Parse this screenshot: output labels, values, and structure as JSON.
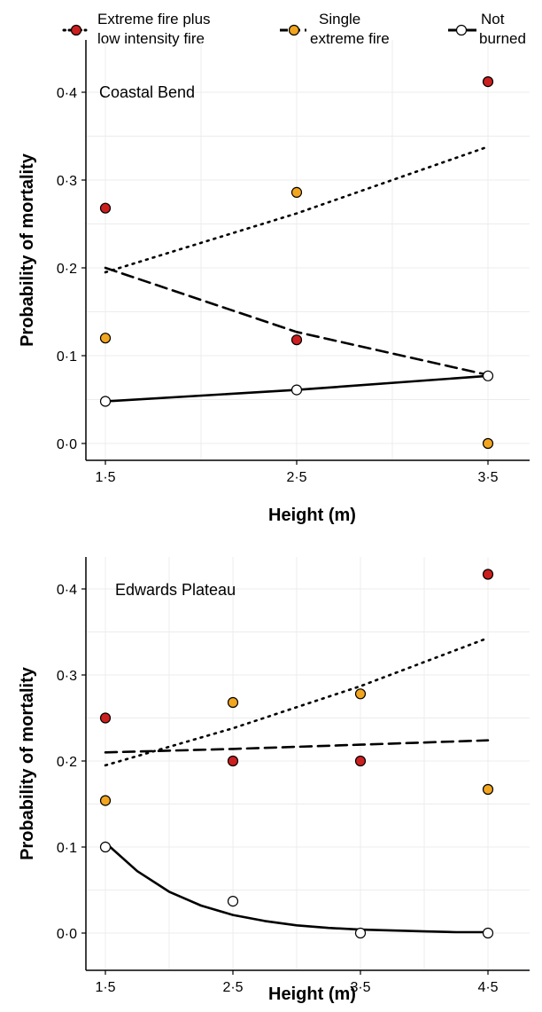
{
  "legend": {
    "items": [
      {
        "label_lines": [
          "Extreme fire plus",
          "low intensity fire"
        ],
        "line": "dotted",
        "fill": "#cc1f1f"
      },
      {
        "label_lines": [
          "Single",
          "extreme fire"
        ],
        "line": "dashed",
        "fill": "#f2a51e"
      },
      {
        "label_lines": [
          "Not",
          "burned"
        ],
        "line": "solid",
        "fill": "#ffffff"
      }
    ]
  },
  "colors": {
    "extreme_plus_low": "#cc1f1f",
    "single_extreme": "#f2a51e",
    "not_burned": "#ffffff",
    "grid": "#ececec"
  },
  "chart_data": [
    {
      "type": "scatter",
      "title": "Coastal Bend",
      "xlabel": "Height (m)",
      "ylabel": "Probability of mortality",
      "xlim": [
        1.5,
        3.5
      ],
      "ylim": [
        0,
        0.4
      ],
      "x_ticks": [
        "1·5",
        "2·5",
        "3·5"
      ],
      "y_ticks": [
        "0·0",
        "0·1",
        "0·2",
        "0·3",
        "0·4"
      ],
      "grid": true,
      "legend_position": "top",
      "series": [
        {
          "name": "Extreme fire plus low intensity fire",
          "x": [
            1.5,
            2.5,
            3.5
          ],
          "y": [
            0.268,
            0.118,
            0.412
          ],
          "fit": {
            "x": [
              1.5,
              2.5,
              3.5
            ],
            "y": [
              0.195,
              0.262,
              0.338
            ]
          },
          "line": "dotted",
          "fill": "#cc1f1f"
        },
        {
          "name": "Single extreme fire",
          "x": [
            1.5,
            2.5,
            3.5
          ],
          "y": [
            0.12,
            0.286,
            0.0
          ],
          "fit": {
            "x": [
              1.5,
              2.5,
              3.5
            ],
            "y": [
              0.2,
              0.127,
              0.078
            ]
          },
          "line": "dashed",
          "fill": "#f2a51e"
        },
        {
          "name": "Not burned",
          "x": [
            1.5,
            2.5,
            3.5
          ],
          "y": [
            0.048,
            0.061,
            0.077
          ],
          "fit": {
            "x": [
              1.5,
              2.5,
              3.5
            ],
            "y": [
              0.048,
              0.061,
              0.077
            ]
          },
          "line": "solid",
          "fill": "#ffffff"
        }
      ]
    },
    {
      "type": "scatter",
      "title": "Edwards Plateau",
      "xlabel": "Height (m)",
      "ylabel": "Probability of mortality",
      "xlim": [
        1.5,
        4.5
      ],
      "ylim": [
        0,
        0.4
      ],
      "x_ticks": [
        "1·5",
        "2·5",
        "3·5",
        "4·5"
      ],
      "y_ticks": [
        "0·0",
        "0·1",
        "0·2",
        "0·3",
        "0·4"
      ],
      "grid": true,
      "series": [
        {
          "name": "Extreme fire plus low intensity fire",
          "x": [
            1.5,
            2.5,
            3.5,
            4.5
          ],
          "y": [
            0.25,
            0.2,
            0.2,
            0.417
          ],
          "fit": {
            "x": [
              1.5,
              2.5,
              3.5,
              4.5
            ],
            "y": [
              0.195,
              0.238,
              0.287,
              0.343
            ]
          },
          "line": "dotted",
          "fill": "#cc1f1f"
        },
        {
          "name": "Single extreme fire",
          "x": [
            1.5,
            2.5,
            3.5,
            4.5
          ],
          "y": [
            0.154,
            0.268,
            0.278,
            0.167
          ],
          "fit": {
            "x": [
              1.5,
              2.5,
              3.5,
              4.5
            ],
            "y": [
              0.21,
              0.214,
              0.219,
              0.224
            ]
          },
          "line": "dashed",
          "fill": "#f2a51e"
        },
        {
          "name": "Not burned",
          "x": [
            1.5,
            2.5,
            3.5,
            4.5
          ],
          "y": [
            0.1,
            0.037,
            0.0,
            0.0
          ],
          "fit": {
            "x": [
              1.5,
              1.75,
              2.0,
              2.25,
              2.5,
              2.75,
              3.0,
              3.25,
              3.5,
              3.75,
              4.0,
              4.25,
              4.5
            ],
            "y": [
              0.105,
              0.072,
              0.048,
              0.032,
              0.021,
              0.014,
              0.009,
              0.006,
              0.004,
              0.003,
              0.002,
              0.001,
              0.001
            ]
          },
          "line": "solid",
          "fill": "#ffffff"
        }
      ]
    }
  ]
}
